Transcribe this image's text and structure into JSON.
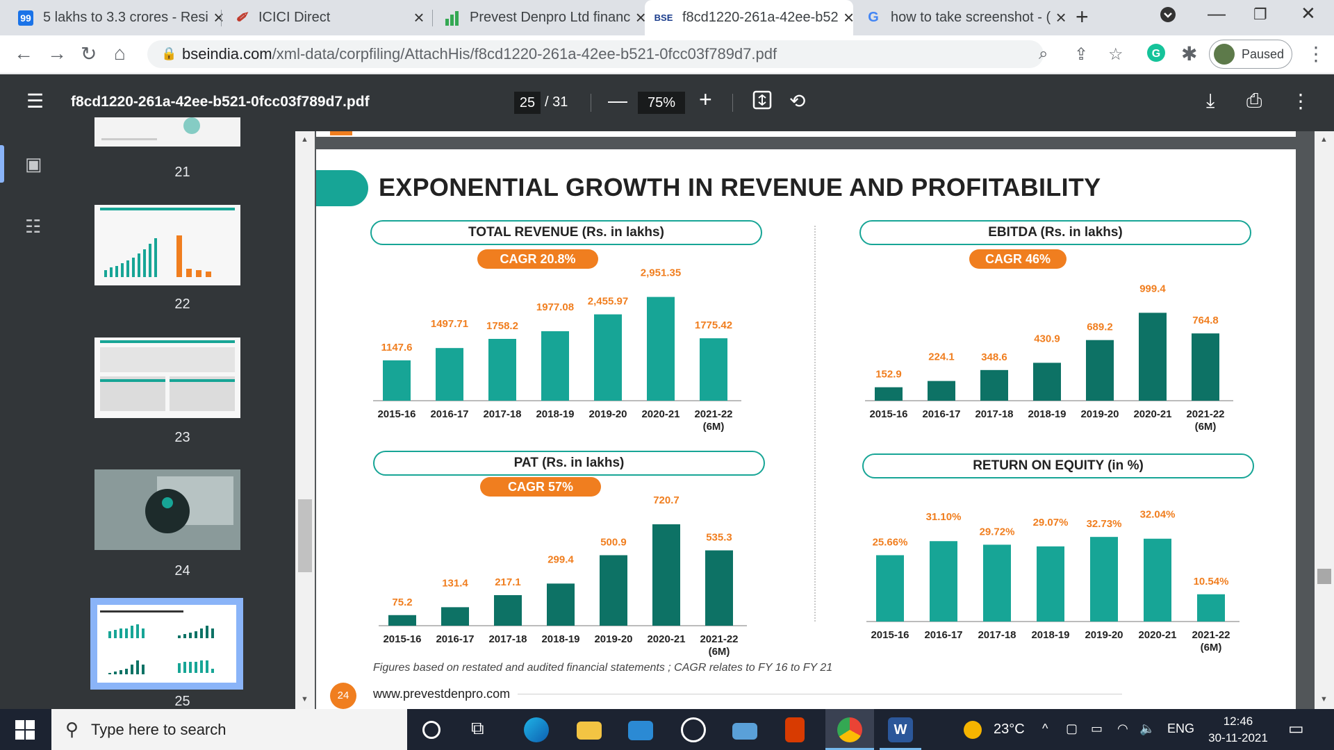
{
  "tabs": [
    {
      "title": "5 lakhs to 3.3 crores - Resi",
      "favicon_label": "99",
      "favicon_color": "#1a73e8"
    },
    {
      "title": "ICICI Direct",
      "favicon_label": "",
      "favicon_color": "#c0392b"
    },
    {
      "title": "Prevest Denpro Ltd financ",
      "favicon_label": "",
      "favicon_color": "#34a853"
    },
    {
      "title": "f8cd1220-261a-42ee-b52",
      "favicon_label": "BSE",
      "favicon_color": "#1a3c8c"
    },
    {
      "title": "how to take screenshot - (",
      "favicon_label": "G",
      "favicon_color": "#4285f4"
    }
  ],
  "browser": {
    "url_domain": "bseindia.com",
    "url_path": "/xml-data/corpfiling/AttachHis/f8cd1220-261a-42ee-b521-0fcc03f789d7.pdf",
    "profile_label": "Paused",
    "extension_letter": "G"
  },
  "pdf": {
    "filename": "f8cd1220-261a-42ee-b521-0fcc03f789d7.pdf",
    "current_page": "25",
    "total_pages": "/ 31",
    "zoom": "75%"
  },
  "sidebar": {
    "thumbnails": [
      "21",
      "22",
      "23",
      "24",
      "25"
    ],
    "selected": "25"
  },
  "slide": {
    "headline": "EXPONENTIAL GROWTH IN REVENUE AND PROFITABILITY",
    "footnote": "Figures based on restated and audited financial statements ; CAGR relates to FY 16 to FY 21",
    "page_number": "24",
    "website": "www.prevestdenpro.com",
    "accent_color": "#17a596",
    "dark_accent_color": "#0d7265",
    "orange_color": "#f07e1f"
  },
  "chart_data": [
    {
      "type": "bar",
      "title": "TOTAL REVENUE (Rs. in lakhs)",
      "cagr": "CAGR  20.8%",
      "categories": [
        "2015-16",
        "2016-17",
        "2017-18",
        "2018-19",
        "2019-20",
        "2020-21",
        "2021-22 (6M)"
      ],
      "values": [
        1147.6,
        1497.71,
        1758.2,
        1977.08,
        2455.97,
        2951.35,
        1775.42
      ],
      "labels": [
        "1147.6",
        "1497.71",
        "1758.2",
        "1977.08",
        "2,455.97",
        "2,951.35",
        "1775.42"
      ],
      "ylim": [
        0,
        3200
      ],
      "color": "#17a596"
    },
    {
      "type": "bar",
      "title": "EBITDA (Rs. in lakhs)",
      "cagr": "CAGR  46%",
      "categories": [
        "2015-16",
        "2016-17",
        "2017-18",
        "2018-19",
        "2019-20",
        "2020-21",
        "2021-22 (6M)"
      ],
      "values": [
        152.9,
        224.1,
        348.6,
        430.9,
        689.2,
        999.4,
        764.8
      ],
      "labels": [
        "152.9",
        "224.1",
        "348.6",
        "430.9",
        "689.2",
        "999.4",
        "764.8"
      ],
      "ylim": [
        0,
        1200
      ],
      "color": "#0d7265"
    },
    {
      "type": "bar",
      "title": "PAT (Rs. in lakhs)",
      "cagr": "CAGR  57%",
      "categories": [
        "2015-16",
        "2016-17",
        "2017-18",
        "2018-19",
        "2019-20",
        "2020-21",
        "2021-22 (6M)"
      ],
      "values": [
        75.2,
        131.4,
        217.1,
        299.4,
        500.9,
        720.7,
        535.3
      ],
      "labels": [
        "75.2",
        "131.4",
        "217.1",
        "299.4",
        "500.9",
        "720.7",
        "535.3"
      ],
      "ylim": [
        0,
        760
      ],
      "color": "#0d7265"
    },
    {
      "type": "bar",
      "title": "RETURN ON EQUITY (in %)",
      "cagr": "",
      "categories": [
        "2015-16",
        "2016-17",
        "2017-18",
        "2018-19",
        "2019-20",
        "2020-21",
        "2021-22 (6M)"
      ],
      "values": [
        25.66,
        31.1,
        29.72,
        29.07,
        32.73,
        32.04,
        10.54
      ],
      "labels": [
        "25.66%",
        "31.10%",
        "29.72%",
        "29.07%",
        "32.73%",
        "32.04%",
        "10.54%"
      ],
      "ylim": [
        0,
        36
      ],
      "color": "#17a596"
    }
  ],
  "taskbar": {
    "search_placeholder": "Type here to search",
    "weather": "23°C",
    "language": "ENG",
    "time": "12:46",
    "date": "30-11-2021"
  }
}
